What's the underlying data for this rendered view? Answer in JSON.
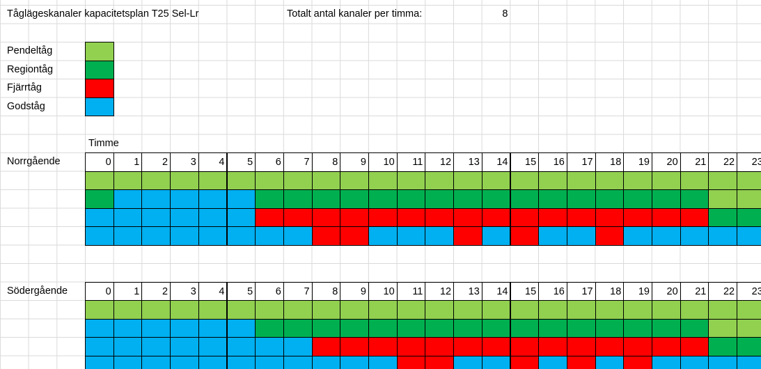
{
  "header": {
    "title": "Tågläges­kanaler kapacitetsplan T25 Sel-Lr",
    "total_label": "Totalt antal kanaler per timma:",
    "total_value": 8
  },
  "legend": [
    {
      "name": "Pendeltåg",
      "color": "#92d050"
    },
    {
      "name": "Regiontåg",
      "color": "#00b050"
    },
    {
      "name": "Fjärrtåg",
      "color": "#ff0000"
    },
    {
      "name": "Godståg",
      "color": "#00b0f0"
    }
  ],
  "hour_label": "Timme",
  "sections": [
    {
      "label": "Norrgående",
      "hours": [
        0,
        1,
        2,
        3,
        4,
        5,
        6,
        7,
        8,
        9,
        10,
        11,
        12,
        13,
        14,
        15,
        16,
        17,
        18,
        19,
        20,
        21,
        22,
        23
      ],
      "rows": [
        [
          "#92d050",
          "#92d050",
          "#92d050",
          "#92d050",
          "#92d050",
          "#92d050",
          "#92d050",
          "#92d050",
          "#92d050",
          "#92d050",
          "#92d050",
          "#92d050",
          "#92d050",
          "#92d050",
          "#92d050",
          "#92d050",
          "#92d050",
          "#92d050",
          "#92d050",
          "#92d050",
          "#92d050",
          "#92d050",
          "#92d050",
          "#92d050"
        ],
        [
          "#00b050",
          "#00b0f0",
          "#00b0f0",
          "#00b0f0",
          "#00b0f0",
          "#00b0f0",
          "#00b050",
          "#00b050",
          "#00b050",
          "#00b050",
          "#00b050",
          "#00b050",
          "#00b050",
          "#00b050",
          "#00b050",
          "#00b050",
          "#00b050",
          "#00b050",
          "#00b050",
          "#00b050",
          "#00b050",
          "#00b050",
          "#92d050",
          "#92d050"
        ],
        [
          "#00b0f0",
          "#00b0f0",
          "#00b0f0",
          "#00b0f0",
          "#00b0f0",
          "#00b0f0",
          "#ff0000",
          "#ff0000",
          "#ff0000",
          "#ff0000",
          "#ff0000",
          "#ff0000",
          "#ff0000",
          "#ff0000",
          "#ff0000",
          "#ff0000",
          "#ff0000",
          "#ff0000",
          "#ff0000",
          "#ff0000",
          "#ff0000",
          "#ff0000",
          "#00b050",
          "#00b050"
        ],
        [
          "#00b0f0",
          "#00b0f0",
          "#00b0f0",
          "#00b0f0",
          "#00b0f0",
          "#00b0f0",
          "#00b0f0",
          "#00b0f0",
          "#ff0000",
          "#ff0000",
          "#00b0f0",
          "#00b0f0",
          "#00b0f0",
          "#ff0000",
          "#00b0f0",
          "#ff0000",
          "#00b0f0",
          "#00b0f0",
          "#ff0000",
          "#00b0f0",
          "#00b0f0",
          "#00b0f0",
          "#00b0f0",
          "#00b0f0"
        ]
      ]
    },
    {
      "label": "Södergående",
      "hours": [
        0,
        1,
        2,
        3,
        4,
        5,
        6,
        7,
        8,
        9,
        10,
        11,
        12,
        13,
        14,
        15,
        16,
        17,
        18,
        19,
        20,
        21,
        22,
        23
      ],
      "rows": [
        [
          "#92d050",
          "#92d050",
          "#92d050",
          "#92d050",
          "#92d050",
          "#92d050",
          "#92d050",
          "#92d050",
          "#92d050",
          "#92d050",
          "#92d050",
          "#92d050",
          "#92d050",
          "#92d050",
          "#92d050",
          "#92d050",
          "#92d050",
          "#92d050",
          "#92d050",
          "#92d050",
          "#92d050",
          "#92d050",
          "#92d050",
          "#92d050"
        ],
        [
          "#00b0f0",
          "#00b0f0",
          "#00b0f0",
          "#00b0f0",
          "#00b0f0",
          "#00b0f0",
          "#00b050",
          "#00b050",
          "#00b050",
          "#00b050",
          "#00b050",
          "#00b050",
          "#00b050",
          "#00b050",
          "#00b050",
          "#00b050",
          "#00b050",
          "#00b050",
          "#00b050",
          "#00b050",
          "#00b050",
          "#00b050",
          "#92d050",
          "#92d050"
        ],
        [
          "#00b0f0",
          "#00b0f0",
          "#00b0f0",
          "#00b0f0",
          "#00b0f0",
          "#00b0f0",
          "#00b0f0",
          "#00b0f0",
          "#ff0000",
          "#ff0000",
          "#ff0000",
          "#ff0000",
          "#ff0000",
          "#ff0000",
          "#ff0000",
          "#ff0000",
          "#ff0000",
          "#ff0000",
          "#ff0000",
          "#ff0000",
          "#ff0000",
          "#ff0000",
          "#00b050",
          "#00b050"
        ],
        [
          "#00b0f0",
          "#00b0f0",
          "#00b0f0",
          "#00b0f0",
          "#00b0f0",
          "#00b0f0",
          "#00b0f0",
          "#00b0f0",
          "#00b0f0",
          "#00b0f0",
          "#00b0f0",
          "#ff0000",
          "#ff0000",
          "#00b0f0",
          "#00b0f0",
          "#ff0000",
          "#00b0f0",
          "#ff0000",
          "#00b0f0",
          "#ff0000",
          "#00b0f0",
          "#00b0f0",
          "#00b0f0",
          "#00b0f0"
        ]
      ]
    }
  ]
}
